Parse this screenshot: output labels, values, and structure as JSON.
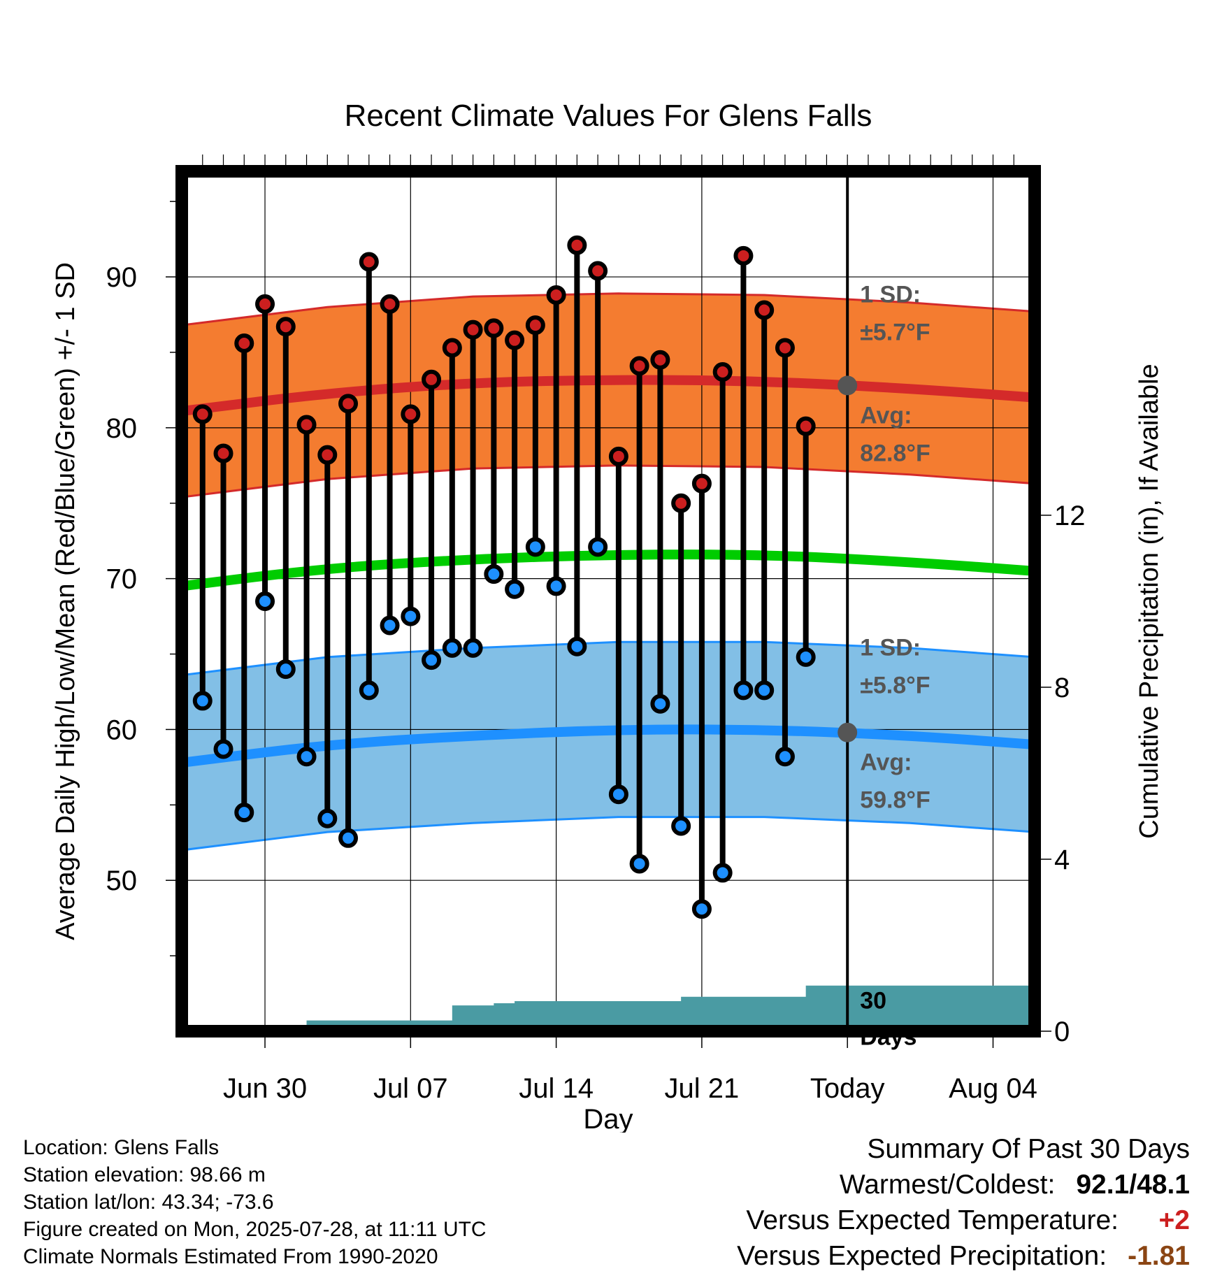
{
  "chart_data": {
    "type": "line",
    "title": "Recent Climate Values For Glens Falls",
    "xlabel": "Day",
    "ylabel": "Average Daily High/Low/Mean (Red/Blue/Green) +/- 1 SD",
    "y2label": "Cumulative Precipitation (in), If Available",
    "ylim": [
      40,
      97
    ],
    "y2lim": [
      0,
      20
    ],
    "yticks": [
      50,
      60,
      70,
      80,
      90
    ],
    "y2ticks": [
      0,
      4,
      8,
      12
    ],
    "x_tick_labels": [
      "Jun 30",
      "Jul 07",
      "Jul 14",
      "Jul 21",
      "Today",
      "Aug 04"
    ],
    "x_tick_dates": [
      "2025-06-30",
      "2025-07-07",
      "2025-07-14",
      "2025-07-21",
      "2025-07-28",
      "2025-08-04"
    ],
    "x_range": [
      "2025-06-26",
      "2025-08-06"
    ],
    "today": "2025-07-28",
    "grid": true,
    "series": [
      {
        "name": "High",
        "color": "#cc1f1f",
        "dates": [
          "2025-06-27",
          "2025-06-28",
          "2025-06-29",
          "2025-06-30",
          "2025-07-01",
          "2025-07-02",
          "2025-07-03",
          "2025-07-04",
          "2025-07-05",
          "2025-07-06",
          "2025-07-07",
          "2025-07-08",
          "2025-07-09",
          "2025-07-10",
          "2025-07-11",
          "2025-07-12",
          "2025-07-13",
          "2025-07-14",
          "2025-07-15",
          "2025-07-16",
          "2025-07-17",
          "2025-07-18",
          "2025-07-19",
          "2025-07-20",
          "2025-07-21",
          "2025-07-22",
          "2025-07-23",
          "2025-07-24",
          "2025-07-25",
          "2025-07-26",
          "2025-07-27"
        ],
        "values": [
          80.9,
          78.3,
          85.6,
          88.2,
          86.7,
          80.2,
          78.2,
          81.6,
          91.0,
          88.2,
          80.9,
          83.2,
          85.3,
          86.5,
          86.6,
          85.8,
          86.8,
          88.8,
          92.1,
          90.4,
          78.1,
          84.1,
          84.5,
          75.0,
          76.3,
          83.7,
          91.4,
          87.8,
          85.3,
          80.1,
          null
        ]
      },
      {
        "name": "Low",
        "color": "#1e90ff",
        "dates": [
          "2025-06-27",
          "2025-06-28",
          "2025-06-29",
          "2025-06-30",
          "2025-07-01",
          "2025-07-02",
          "2025-07-03",
          "2025-07-04",
          "2025-07-05",
          "2025-07-06",
          "2025-07-07",
          "2025-07-08",
          "2025-07-09",
          "2025-07-10",
          "2025-07-11",
          "2025-07-12",
          "2025-07-13",
          "2025-07-14",
          "2025-07-15",
          "2025-07-16",
          "2025-07-17",
          "2025-07-18",
          "2025-07-19",
          "2025-07-20",
          "2025-07-21",
          "2025-07-22",
          "2025-07-23",
          "2025-07-24",
          "2025-07-25",
          "2025-07-26",
          "2025-07-27"
        ],
        "values": [
          61.9,
          58.7,
          54.5,
          68.5,
          64.0,
          58.2,
          54.1,
          52.8,
          62.6,
          66.9,
          67.5,
          64.6,
          65.4,
          65.4,
          70.3,
          69.3,
          72.1,
          69.5,
          65.5,
          72.1,
          55.7,
          51.1,
          61.7,
          53.6,
          48.1,
          50.5,
          62.6,
          62.6,
          58.2,
          64.8,
          null
        ]
      },
      {
        "name": "Normal High",
        "color": "#d42a2a",
        "x": [
          "2025-06-26",
          "2025-07-03",
          "2025-07-10",
          "2025-07-17",
          "2025-07-24",
          "2025-07-31",
          "2025-08-06"
        ],
        "values": [
          81.1,
          82.3,
          83.0,
          83.2,
          83.1,
          82.6,
          82.0
        ],
        "sd": 5.7
      },
      {
        "name": "Normal Low",
        "color": "#1e90ff",
        "x": [
          "2025-06-26",
          "2025-07-03",
          "2025-07-10",
          "2025-07-17",
          "2025-07-24",
          "2025-07-31",
          "2025-08-06"
        ],
        "values": [
          57.8,
          59.0,
          59.6,
          60.0,
          60.0,
          59.6,
          59.0
        ],
        "sd": 5.8
      },
      {
        "name": "Normal Mean",
        "color": "#00cc00",
        "x": [
          "2025-06-26",
          "2025-07-03",
          "2025-07-10",
          "2025-07-17",
          "2025-07-24",
          "2025-07-31",
          "2025-08-06"
        ],
        "values": [
          69.5,
          70.7,
          71.3,
          71.6,
          71.6,
          71.1,
          70.5
        ]
      },
      {
        "name": "Cumulative Precipitation",
        "type": "area",
        "color": "#4a9ba3",
        "x": [
          "2025-06-26",
          "2025-06-27",
          "2025-07-01",
          "2025-07-02",
          "2025-07-08",
          "2025-07-09",
          "2025-07-10",
          "2025-07-11",
          "2025-07-12",
          "2025-07-19",
          "2025-07-20",
          "2025-07-25",
          "2025-07-26",
          "2025-08-06"
        ],
        "values": [
          0.0,
          0.12,
          0.12,
          0.25,
          0.25,
          0.6,
          0.6,
          0.65,
          0.7,
          0.7,
          0.8,
          0.8,
          1.06,
          1.06
        ]
      }
    ],
    "annotations": {
      "high_sd_title": "1 SD:",
      "high_sd_value": "±5.7°F",
      "high_avg_title": "Avg:",
      "high_avg_value": "82.8°F",
      "low_sd_title": "1 SD:",
      "low_sd_value": "±5.8°F",
      "low_avg_title": "Avg:",
      "low_avg_value": "59.8°F",
      "days_line1": "30",
      "days_line2": "Days",
      "today_high_avg": 82.8,
      "today_low_avg": 59.8
    }
  },
  "footer": {
    "location": "Location: Glens Falls",
    "elevation": "Station elevation: 98.66 m",
    "latlon": "Station lat/lon: 43.34; -73.6",
    "created": "Figure created on Mon, 2025-07-28, at 11:11 UTC",
    "normals": "Climate Normals Estimated From 1990-2020"
  },
  "summary": {
    "title": "Summary Of Past 30 Days",
    "warmest_label": "Warmest/Coldest:",
    "warmest_value": "92.1/48.1",
    "temp_label": "Versus Expected Temperature:",
    "temp_value": "+2",
    "temp_color": "#cc1f1f",
    "precip_label": "Versus Expected Precipitation:",
    "precip_value": "-1.81",
    "precip_color": "#8b4513"
  }
}
